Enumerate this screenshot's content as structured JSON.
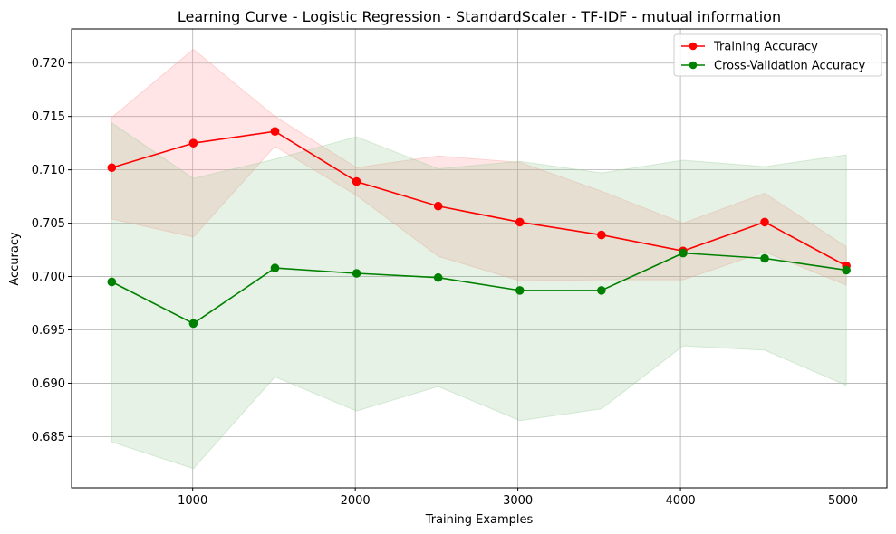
{
  "chart_data": {
    "type": "line",
    "title": "Learning Curve - Logistic Regression - StandardScaler - TF-IDF - mutual information",
    "xlabel": "Training Examples",
    "ylabel": "Accuracy",
    "xlim": [
      255,
      5270
    ],
    "ylim": [
      0.6802,
      0.7232
    ],
    "xticks": [
      1000,
      2000,
      3000,
      4000,
      5000
    ],
    "xtick_labels": [
      "1000",
      "2000",
      "3000",
      "4000",
      "5000"
    ],
    "yticks": [
      0.685,
      0.69,
      0.695,
      0.7,
      0.705,
      0.71,
      0.715,
      0.72
    ],
    "ytick_labels": [
      "0.685",
      "0.690",
      "0.695",
      "0.700",
      "0.705",
      "0.710",
      "0.715",
      "0.720"
    ],
    "grid": true,
    "legend_position": "upper right",
    "x": [
      502,
      1004,
      1506,
      2008,
      2510,
      3012,
      3514,
      4016,
      4518,
      5020
    ],
    "series": [
      {
        "name": "Training Accuracy",
        "color": "#ff0000",
        "marker": "circle",
        "values": [
          0.7102,
          0.7125,
          0.7136,
          0.7089,
          0.7066,
          0.7051,
          0.7039,
          0.7024,
          0.7051,
          0.701
        ],
        "band_upper": [
          0.7149,
          0.7213,
          0.715,
          0.7102,
          0.7113,
          0.7107,
          0.708,
          0.705,
          0.7078,
          0.7028
        ],
        "band_lower": [
          0.7054,
          0.7037,
          0.7122,
          0.7076,
          0.7019,
          0.6996,
          0.6997,
          0.6997,
          0.7023,
          0.6992
        ],
        "band_color": "#ff9999"
      },
      {
        "name": "Cross-Validation Accuracy",
        "color": "#008000",
        "marker": "circle",
        "values": [
          0.6995,
          0.6956,
          0.7008,
          0.7003,
          0.6999,
          0.6987,
          0.6987,
          0.7022,
          0.7017,
          0.7006
        ],
        "band_upper": [
          0.7144,
          0.7092,
          0.711,
          0.7131,
          0.7101,
          0.7108,
          0.7097,
          0.7109,
          0.7103,
          0.7114
        ],
        "band_lower": [
          0.6845,
          0.682,
          0.6906,
          0.6874,
          0.6897,
          0.6865,
          0.6876,
          0.6935,
          0.6931,
          0.6898
        ],
        "band_color": "#99cc99"
      }
    ]
  }
}
